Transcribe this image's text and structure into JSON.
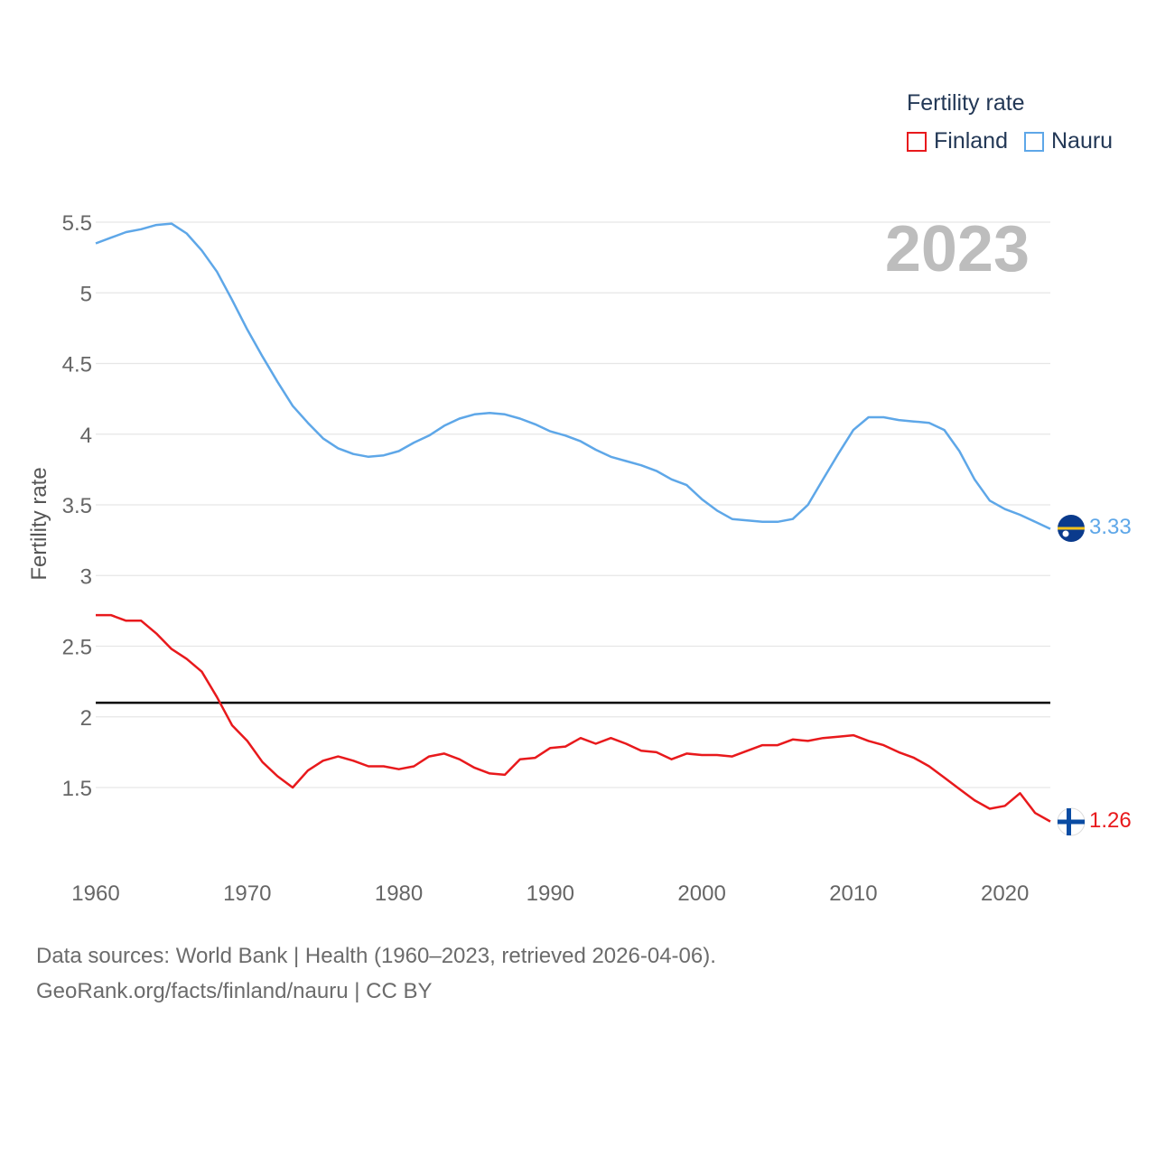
{
  "legend": {
    "title": "Fertility rate",
    "items": [
      {
        "label": "Finland",
        "color": "#e8191c"
      },
      {
        "label": "Nauru",
        "color": "#5ea7e8"
      }
    ]
  },
  "year_label": "2023",
  "footer": {
    "line1": "Data sources: World Bank | Health (1960–2023, retrieved 2026-04-06).",
    "line2": "GeoRank.org/facts/finland/nauru | CC BY"
  },
  "chart_data": {
    "type": "line",
    "title": "",
    "xlabel": "",
    "ylabel": "Fertility rate",
    "xlim": [
      1960,
      2023
    ],
    "ylim": [
      1.0,
      5.5
    ],
    "x_ticks": [
      1960,
      1970,
      1980,
      1990,
      2000,
      2010,
      2020
    ],
    "y_ticks": [
      1.5,
      2,
      2.5,
      3,
      3.5,
      4,
      4.5,
      5,
      5.5
    ],
    "y_tick_labels": [
      "1.5",
      "2",
      "2.5",
      "3",
      "3.5",
      "4",
      "4.5",
      "5",
      "5.5"
    ],
    "reference_line": 2.1,
    "x": [
      1960,
      1961,
      1962,
      1963,
      1964,
      1965,
      1966,
      1967,
      1968,
      1969,
      1970,
      1971,
      1972,
      1973,
      1974,
      1975,
      1976,
      1977,
      1978,
      1979,
      1980,
      1981,
      1982,
      1983,
      1984,
      1985,
      1986,
      1987,
      1988,
      1989,
      1990,
      1991,
      1992,
      1993,
      1994,
      1995,
      1996,
      1997,
      1998,
      1999,
      2000,
      2001,
      2002,
      2003,
      2004,
      2005,
      2006,
      2007,
      2008,
      2009,
      2010,
      2011,
      2012,
      2013,
      2014,
      2015,
      2016,
      2017,
      2018,
      2019,
      2020,
      2021,
      2022,
      2023
    ],
    "series": [
      {
        "name": "Finland",
        "color": "#e8191c",
        "end_label": "1.26",
        "flag": "finland-flag-icon",
        "values": [
          2.72,
          2.72,
          2.68,
          2.68,
          2.59,
          2.48,
          2.41,
          2.32,
          2.14,
          1.94,
          1.83,
          1.68,
          1.58,
          1.5,
          1.62,
          1.69,
          1.72,
          1.69,
          1.65,
          1.65,
          1.63,
          1.65,
          1.72,
          1.74,
          1.7,
          1.64,
          1.6,
          1.59,
          1.7,
          1.71,
          1.78,
          1.79,
          1.85,
          1.81,
          1.85,
          1.81,
          1.76,
          1.75,
          1.7,
          1.74,
          1.73,
          1.73,
          1.72,
          1.76,
          1.8,
          1.8,
          1.84,
          1.83,
          1.85,
          1.86,
          1.87,
          1.83,
          1.8,
          1.75,
          1.71,
          1.65,
          1.57,
          1.49,
          1.41,
          1.35,
          1.37,
          1.46,
          1.32,
          1.26
        ]
      },
      {
        "name": "Nauru",
        "color": "#5ea7e8",
        "end_label": "3.33",
        "flag": "nauru-flag-icon",
        "values": [
          5.35,
          5.39,
          5.43,
          5.45,
          5.48,
          5.49,
          5.42,
          5.3,
          5.15,
          4.95,
          4.74,
          4.55,
          4.37,
          4.2,
          4.08,
          3.97,
          3.9,
          3.86,
          3.84,
          3.85,
          3.88,
          3.94,
          3.99,
          4.06,
          4.11,
          4.14,
          4.15,
          4.14,
          4.11,
          4.07,
          4.02,
          3.99,
          3.95,
          3.89,
          3.84,
          3.81,
          3.78,
          3.74,
          3.68,
          3.64,
          3.54,
          3.46,
          3.4,
          3.39,
          3.38,
          3.38,
          3.4,
          3.5,
          3.68,
          3.86,
          4.03,
          4.12,
          4.12,
          4.1,
          4.09,
          4.08,
          4.03,
          3.88,
          3.68,
          3.53,
          3.47,
          3.43,
          3.38,
          3.33
        ]
      }
    ]
  }
}
